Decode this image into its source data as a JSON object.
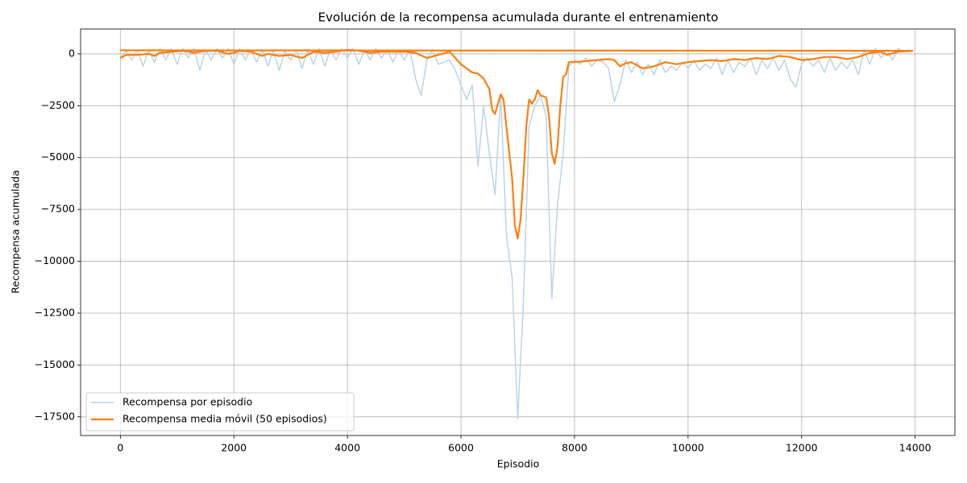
{
  "chart_data": {
    "type": "line",
    "title": "Evolución de la recompensa acumulada durante el entrenamiento",
    "x_label": "Episodio",
    "y_label": "Recompensa acumulada",
    "xlim": [
      -700,
      14700
    ],
    "ylim": [
      -18400,
      1200
    ],
    "xticks": [
      0,
      2000,
      4000,
      6000,
      8000,
      10000,
      12000,
      14000
    ],
    "yticks": [
      {
        "value": -17500,
        "label": "−17500"
      },
      {
        "value": -15000,
        "label": "−15000"
      },
      {
        "value": -12500,
        "label": "−12500"
      },
      {
        "value": -10000,
        "label": "−10000"
      },
      {
        "value": -7500,
        "label": "−7500"
      },
      {
        "value": -5000,
        "label": "−5000"
      },
      {
        "value": -2500,
        "label": "−2500"
      },
      0
    ],
    "grid": true,
    "legend": "lower left",
    "series": [
      {
        "name": "Recompensa por episodio",
        "color": "#b8d5ea",
        "width": 1.5,
        "x": [
          0,
          100,
          200,
          300,
          400,
          500,
          600,
          700,
          800,
          900,
          1000,
          1100,
          1200,
          1300,
          1400,
          1500,
          1600,
          1700,
          1800,
          1900,
          2000,
          2100,
          2200,
          2300,
          2400,
          2500,
          2600,
          2700,
          2800,
          2900,
          3000,
          3100,
          3200,
          3300,
          3400,
          3500,
          3600,
          3700,
          3800,
          3900,
          4000,
          4100,
          4200,
          4300,
          4400,
          4500,
          4600,
          4700,
          4800,
          4900,
          5000,
          5100,
          5200,
          5300,
          5400,
          5500,
          5600,
          5700,
          5800,
          5900,
          6000,
          6100,
          6200,
          6300,
          6400,
          6500,
          6600,
          6700,
          6800,
          6900,
          7000,
          7100,
          7200,
          7300,
          7400,
          7500,
          7600,
          7700,
          7800,
          7900,
          8000,
          8100,
          8200,
          8300,
          8400,
          8500,
          8600,
          8700,
          8800,
          8900,
          9000,
          9100,
          9200,
          9300,
          9400,
          9500,
          9600,
          9700,
          9800,
          9900,
          10000,
          10100,
          10200,
          10300,
          10400,
          10500,
          10600,
          10700,
          10800,
          10900,
          11000,
          11100,
          11200,
          11300,
          11400,
          11500,
          11600,
          11700,
          11800,
          11900,
          12000,
          12100,
          12200,
          12300,
          12400,
          12500,
          12600,
          12700,
          12800,
          12900,
          13000,
          13100,
          13200,
          13300,
          13400,
          13500,
          13600,
          13700,
          13800,
          13900
        ],
        "values": [
          -200,
          150,
          -300,
          200,
          -600,
          200,
          -400,
          250,
          -300,
          250,
          -500,
          250,
          -200,
          250,
          -800,
          200,
          -300,
          250,
          -200,
          250,
          -500,
          250,
          -300,
          200,
          -400,
          200,
          -600,
          200,
          -800,
          150,
          -300,
          200,
          -700,
          200,
          -500,
          250,
          -600,
          200,
          -300,
          250,
          -200,
          250,
          -500,
          200,
          -300,
          250,
          -200,
          200,
          -400,
          200,
          -300,
          200,
          -1200,
          -2000,
          -300,
          200,
          -500,
          -400,
          -300,
          -800,
          -1500,
          -2200,
          -1500,
          -5400,
          -2500,
          -4800,
          -6800,
          -2000,
          -8700,
          -10800,
          -17600,
          -12000,
          -3500,
          -2500,
          -2000,
          -3000,
          -11800,
          -7300,
          -4800,
          -600,
          -300,
          -500,
          -200,
          -600,
          -300,
          -400,
          -700,
          -2300,
          -1500,
          -300,
          -900,
          -400,
          -1000,
          -500,
          -1000,
          -300,
          -900,
          -600,
          -800,
          -400,
          -700,
          -300,
          -800,
          -500,
          -700,
          -200,
          -1000,
          -300,
          -900,
          -400,
          -600,
          -200,
          -1000,
          -300,
          -700,
          -200,
          -800,
          -300,
          -1200,
          -1600,
          -500,
          -200,
          -600,
          -300,
          -900,
          -200,
          -800,
          -400,
          -700,
          -300,
          -1000,
          200,
          -500,
          250,
          -200,
          200,
          -300,
          250,
          100,
          200
        ]
      },
      {
        "name": "Recompensa media móvil (50 episodios)",
        "color": "#ff7f0e",
        "width": 2.2,
        "x": [
          0,
          100,
          300,
          500,
          600,
          700,
          900,
          1100,
          1300,
          1500,
          1700,
          1900,
          2000,
          2100,
          2300,
          2500,
          2600,
          2800,
          3000,
          3200,
          3400,
          3600,
          3800,
          4000,
          4200,
          4400,
          4600,
          4800,
          5000,
          5200,
          5400,
          5600,
          5800,
          5900,
          6000,
          6200,
          6300,
          6400,
          6500,
          6550,
          6600,
          6700,
          6750,
          6800,
          6900,
          6950,
          7000,
          7050,
          7100,
          7150,
          7200,
          7250,
          7300,
          7350,
          7400,
          7500,
          7550,
          7600,
          7650,
          7700,
          7750,
          7800,
          7850,
          7900,
          8000,
          8200,
          8400,
          8600,
          8700,
          8800,
          8900,
          9000,
          9200,
          9400,
          9500,
          9600,
          9800,
          10000,
          10200,
          10400,
          10600,
          10800,
          11000,
          11200,
          11400,
          11600,
          11800,
          12000,
          12200,
          12400,
          12600,
          12800,
          13000,
          13200,
          13400,
          13500,
          13700,
          13950,
          0
        ],
        "values": [
          -200,
          -50,
          -50,
          0,
          -100,
          50,
          100,
          150,
          50,
          150,
          150,
          0,
          50,
          150,
          100,
          -100,
          0,
          -100,
          -50,
          -200,
          100,
          50,
          100,
          200,
          150,
          50,
          100,
          100,
          100,
          50,
          -200,
          -50,
          100,
          -200,
          -500,
          -900,
          -950,
          -1200,
          -1700,
          -2700,
          -2900,
          -1950,
          -2200,
          -3500,
          -6000,
          -8300,
          -8900,
          -8000,
          -6000,
          -3500,
          -2200,
          -2400,
          -2200,
          -1750,
          -2000,
          -2100,
          -3000,
          -4800,
          -5300,
          -4500,
          -2500,
          -1100,
          -1000,
          -400,
          -400,
          -350,
          -300,
          -250,
          -300,
          -600,
          -450,
          -400,
          -700,
          -600,
          -500,
          -400,
          -500,
          -400,
          -350,
          -300,
          -350,
          -250,
          -300,
          -200,
          -250,
          -100,
          -150,
          -300,
          -250,
          -150,
          -150,
          -250,
          -150,
          50,
          100,
          -50,
          100,
          150,
          170
        ]
      }
    ]
  }
}
